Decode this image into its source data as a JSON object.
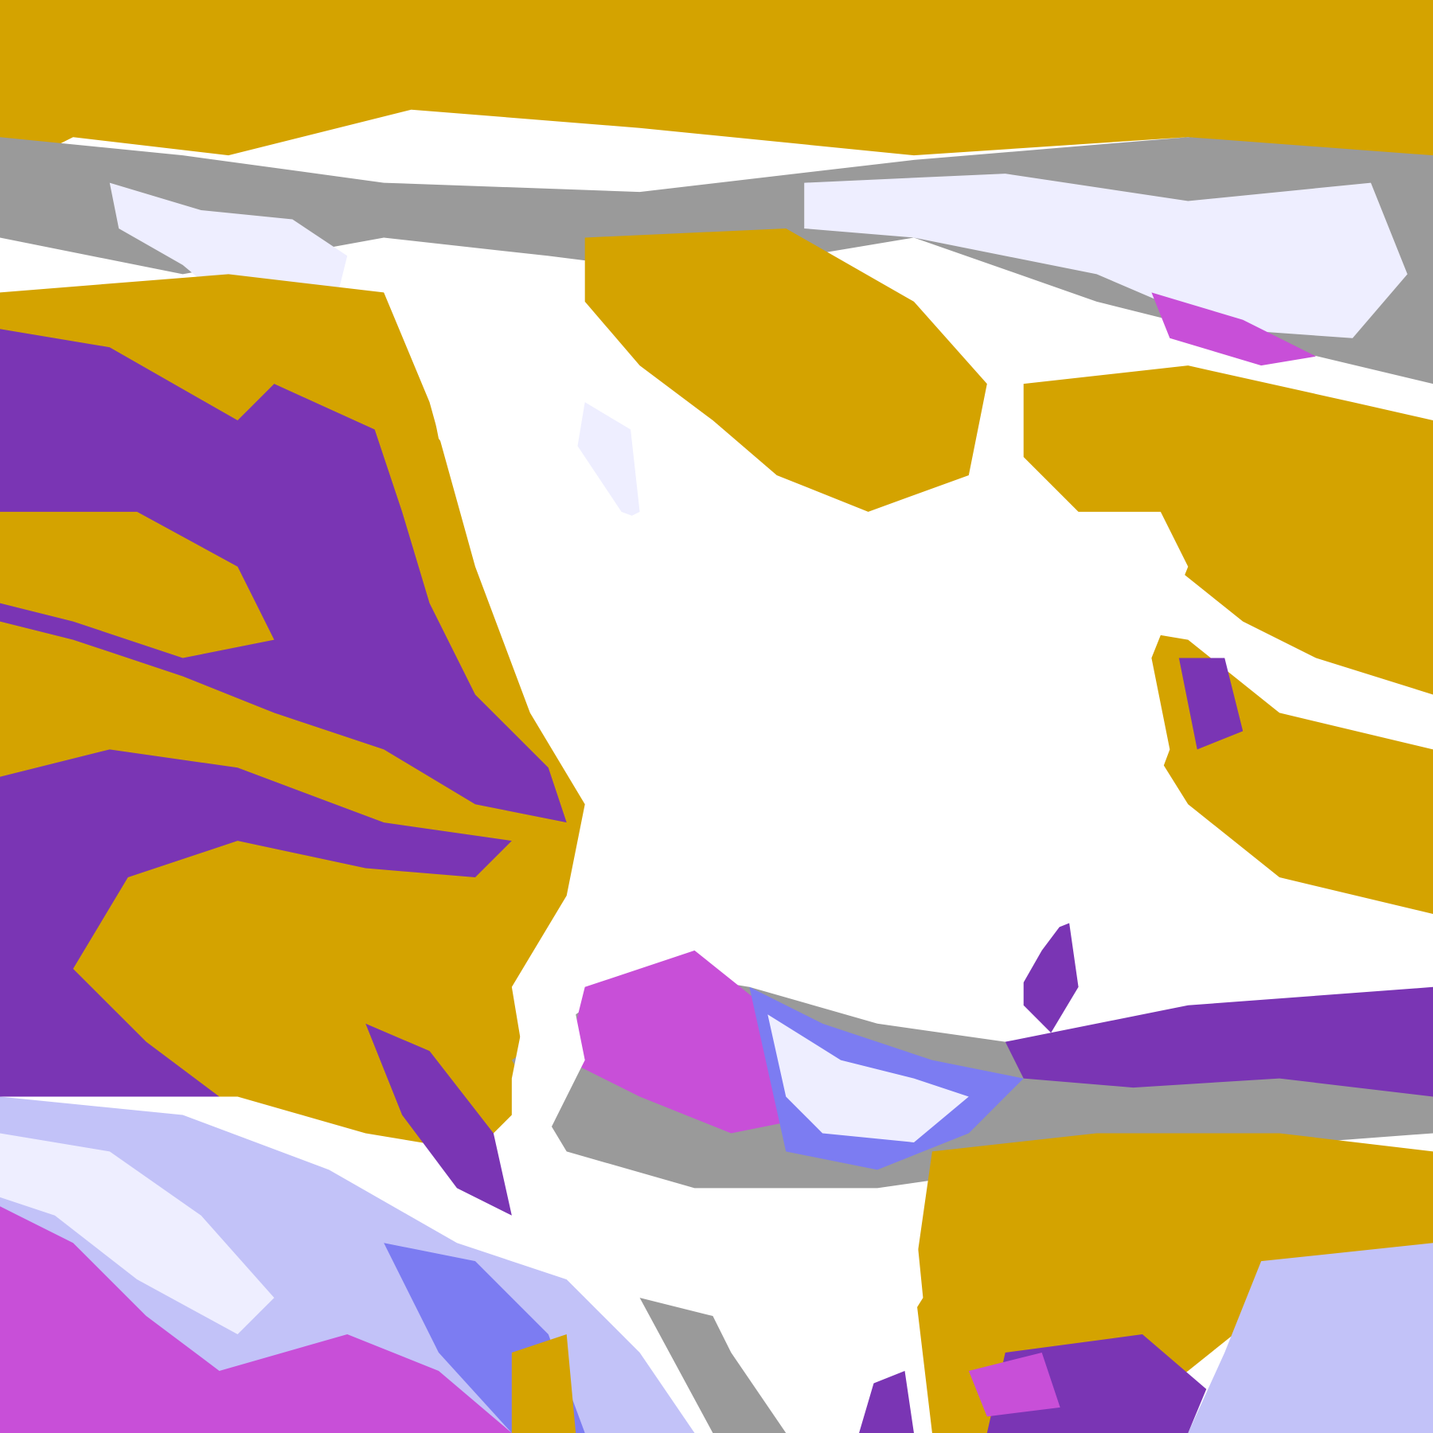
{
  "image": {
    "kind": "false-color satellite cloud classification",
    "palette": {
      "background_clear": "#ffffff",
      "gold": "#d4a300",
      "dark_purple": "#7a35b4",
      "magenta": "#c84fd8",
      "periwinkle": "#7c7cf2",
      "lavender": "#c2c2f8",
      "pale_lavender": "#eeeeff",
      "gray": "#9a9a9a"
    }
  }
}
